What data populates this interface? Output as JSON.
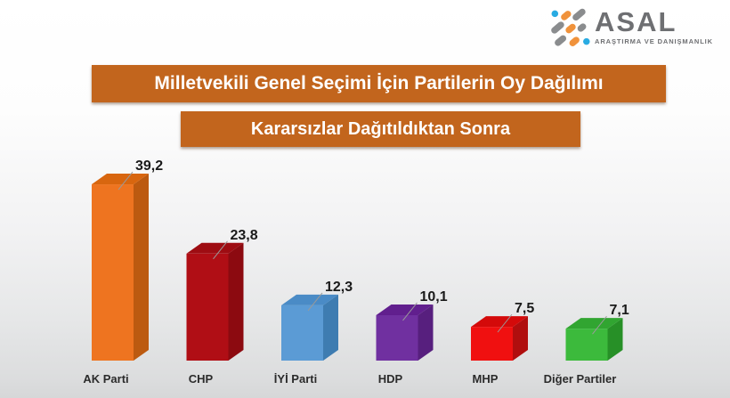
{
  "logo": {
    "name": "ASAL",
    "subtitle": "ARAŞTIRMA VE DANIŞMANLIK",
    "colors": {
      "gray": "#8a8c8e",
      "text_gray": "#6e6f72",
      "orange": "#f0923b",
      "blue": "#29abe2"
    }
  },
  "banners": {
    "primary": "Milletvekili Genel Seçimi İçin Partilerin Oy Dağılımı",
    "secondary": "Kararsızlar Dağıtıldıktan Sonra",
    "background": "#c2651d",
    "text_color": "#ffffff"
  },
  "chart_data": {
    "type": "bar",
    "style": "3d-column",
    "title": "Milletvekili Genel Seçimi İçin Partilerin Oy Dağılımı",
    "subtitle": "Kararsızlar Dağıtıldıktan Sonra",
    "categories": [
      "AK Parti",
      "CHP",
      "İYİ Parti",
      "HDP",
      "MHP",
      "Diğer Partiler"
    ],
    "values": [
      39.2,
      23.8,
      12.3,
      10.1,
      7.5,
      7.1
    ],
    "value_labels": [
      "39,2",
      "23,8",
      "12,3",
      "10,1",
      "7,5",
      "7,1"
    ],
    "bar_colors": [
      {
        "front": "#ee7420",
        "top": "#d8660f",
        "side": "#bc5a10"
      },
      {
        "front": "#b00e15",
        "top": "#9e0c12",
        "side": "#8c0a10"
      },
      {
        "front": "#5b9bd5",
        "top": "#4a8bc6",
        "side": "#3e7cb1"
      },
      {
        "front": "#7030a0",
        "top": "#611f8e",
        "side": "#571f7e"
      },
      {
        "front": "#f01010",
        "top": "#d40a0a",
        "side": "#b00e0e"
      },
      {
        "front": "#3cba3c",
        "top": "#31a531",
        "side": "#279027"
      }
    ],
    "xlabel": "",
    "ylabel": "",
    "ylim": [
      0,
      45
    ],
    "grid": false,
    "legend": false,
    "leader_line_color": "#9a9a9a",
    "value_label_color": "#1a1a1a",
    "category_label_color": "#2b2b2b"
  }
}
